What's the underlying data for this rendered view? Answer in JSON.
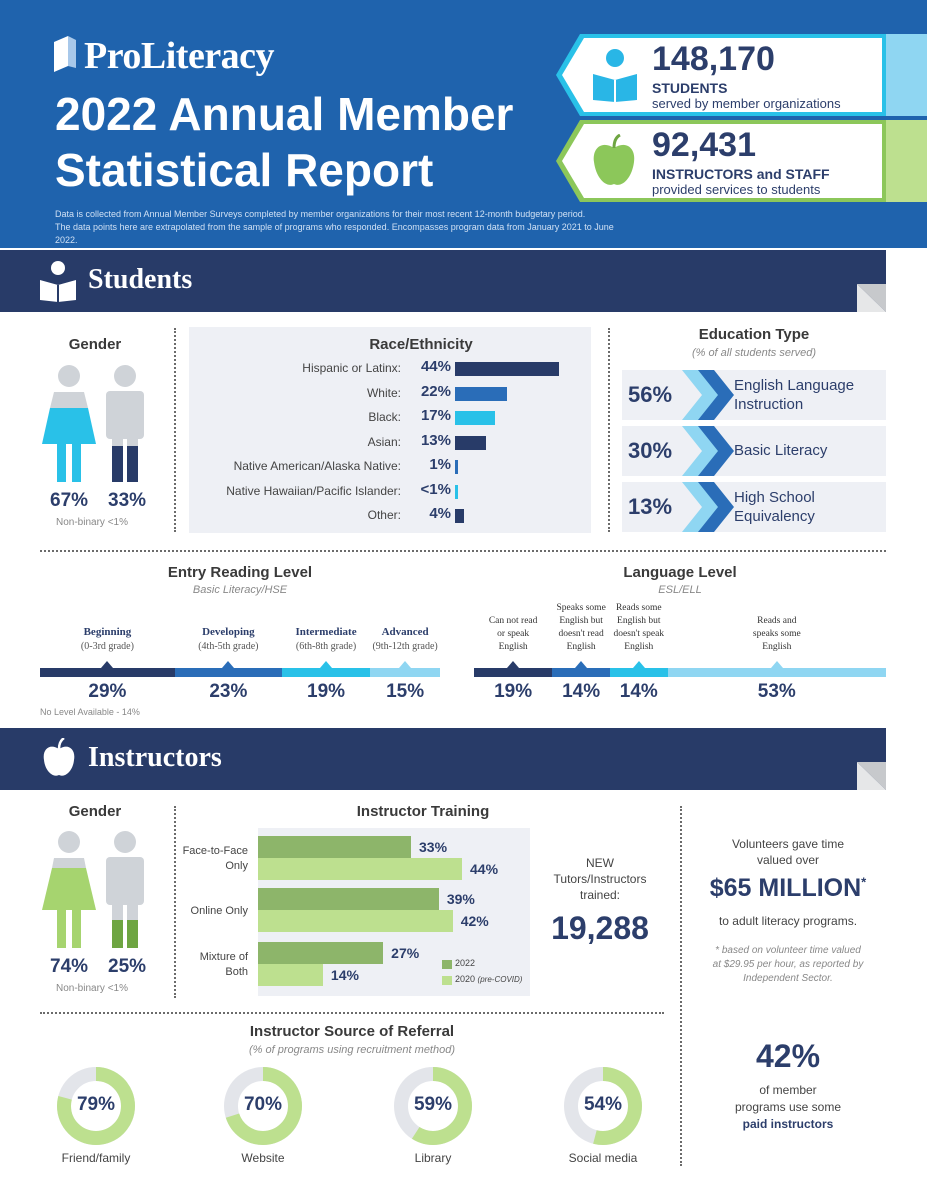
{
  "header": {
    "logo": "ProLiteracy",
    "title": "2022 Annual Member Statistical Report",
    "note_line1": "Data is collected from Annual Member Surveys completed by member organizations for their most recent 12-month budgetary period.",
    "note_line2": "The data points here are extrapolated from the sample of programs who responded. Encompasses program data from January 2021 to June 2022.",
    "stats": [
      {
        "value": "148,170",
        "label": "STUDENTS",
        "sub": "served by member organizations",
        "icon": "reading-student-icon"
      },
      {
        "value": "92,431",
        "label": "INSTRUCTORS and STAFF",
        "sub": "provided services to students",
        "icon": "apple-icon"
      }
    ]
  },
  "students": {
    "band_title": "Students",
    "gender": {
      "title": "Gender",
      "female": "67%",
      "male": "33%",
      "nonbinary": "Non-binary <1%"
    },
    "race": {
      "title": "Race/Ethnicity",
      "rows": [
        {
          "label": "Hispanic or Latinx:",
          "pct": "44%",
          "value": 44,
          "color": "#283b68"
        },
        {
          "label": "White:",
          "pct": "22%",
          "value": 22,
          "color": "#2a6db8"
        },
        {
          "label": "Black:",
          "pct": "17%",
          "value": 17,
          "color": "#29c1e8"
        },
        {
          "label": "Asian:",
          "pct": "13%",
          "value": 13,
          "color": "#283b68"
        },
        {
          "label": "Native American/Alaska Native:",
          "pct": "1%",
          "value": 1,
          "color": "#2a6db8"
        },
        {
          "label": "Native Hawaiian/Pacific Islander:",
          "pct": "<1%",
          "value": 0.6,
          "color": "#29c1e8"
        },
        {
          "label": "Other:",
          "pct": "4%",
          "value": 4,
          "color": "#283b68"
        }
      ]
    },
    "education": {
      "title": "Education Type",
      "subtitle": "(% of all students served)",
      "rows": [
        {
          "pct": "56%",
          "line1": "English Language",
          "line2": "Instruction"
        },
        {
          "pct": "30%",
          "line1": "Basic Literacy",
          "line2": ""
        },
        {
          "pct": "13%",
          "line1": "High School",
          "line2": "Equivalency"
        }
      ]
    },
    "entry_reading": {
      "title": "Entry Reading Level",
      "subtitle": "Basic Literacy/HSE",
      "levels": [
        {
          "name": "Beginning",
          "range": "(0-3rd grade)",
          "pct": "29%",
          "value": 29,
          "color": "#283b68"
        },
        {
          "name": "Developing",
          "range": "(4th-5th grade)",
          "pct": "23%",
          "value": 23,
          "color": "#2a6db8"
        },
        {
          "name": "Intermediate",
          "range": "(6th-8th grade)",
          "pct": "19%",
          "value": 19,
          "color": "#29c1e8"
        },
        {
          "name": "Advanced",
          "range": "(9th-12th grade)",
          "pct": "15%",
          "value": 15,
          "color": "#8fd6f2"
        }
      ],
      "note": "No Level Available - 14%"
    },
    "language_level": {
      "title": "Language Level",
      "subtitle": "ESL/ELL",
      "levels": [
        {
          "lines": [
            "Can not read",
            "or speak",
            "English"
          ],
          "pct": "19%",
          "value": 19,
          "color": "#283b68"
        },
        {
          "lines": [
            "Speaks some",
            "English but",
            "doesn't read",
            "English"
          ],
          "pct": "14%",
          "value": 14,
          "color": "#2a6db8"
        },
        {
          "lines": [
            "Reads some",
            "English but",
            "doesn't speak",
            "English"
          ],
          "pct": "14%",
          "value": 14,
          "color": "#29c1e8"
        },
        {
          "lines": [
            "Reads and",
            "speaks some",
            "English"
          ],
          "pct": "53%",
          "value": 53,
          "color": "#8fd6f2"
        }
      ]
    }
  },
  "instructors": {
    "band_title": "Instructors",
    "gender": {
      "title": "Gender",
      "female": "74%",
      "male": "25%",
      "nonbinary": "Non-binary <1%"
    },
    "training": {
      "title": "Instructor Training",
      "rows": [
        {
          "label1": "Face-to-Face",
          "label2": "Only",
          "y2022": "33%",
          "v2022": 33,
          "y2020": "44%",
          "v2020": 44
        },
        {
          "label1": "Online Only",
          "label2": "",
          "y2022": "39%",
          "v2022": 39,
          "y2020": "42%",
          "v2020": 42
        },
        {
          "label1": "Mixture of",
          "label2": "Both",
          "y2022": "27%",
          "v2022": 27,
          "y2020": "14%",
          "v2020": 14
        }
      ],
      "legend_2022": "2022",
      "legend_2020": "2020",
      "legend_2020_note": "(pre-COVID)"
    },
    "new_trained": {
      "line1": "NEW",
      "line2": "Tutors/Instructors",
      "line3": "trained:",
      "value": "19,288"
    },
    "volunteer": {
      "line1": "Volunteers gave time",
      "line2": "valued over",
      "value": "$65 MILLION",
      "star": "*",
      "line3": "to adult literacy programs.",
      "foot1": "* based on volunteer time valued",
      "foot2": "at  $29.95 per hour, as reported by",
      "foot3": "Independent Sector."
    },
    "referral": {
      "title": "Instructor Source of Referral",
      "subtitle": "(% of programs using recruitment method)",
      "items": [
        {
          "pct": "79%",
          "value": 79,
          "label": "Friend/family"
        },
        {
          "pct": "70%",
          "value": 70,
          "label": "Website"
        },
        {
          "pct": "59%",
          "value": 59,
          "label": "Library"
        },
        {
          "pct": "54%",
          "value": 54,
          "label": "Social media"
        }
      ]
    },
    "paid": {
      "value": "42%",
      "line1": "of member",
      "line2": "programs use some",
      "line3": "paid instructors"
    }
  }
}
